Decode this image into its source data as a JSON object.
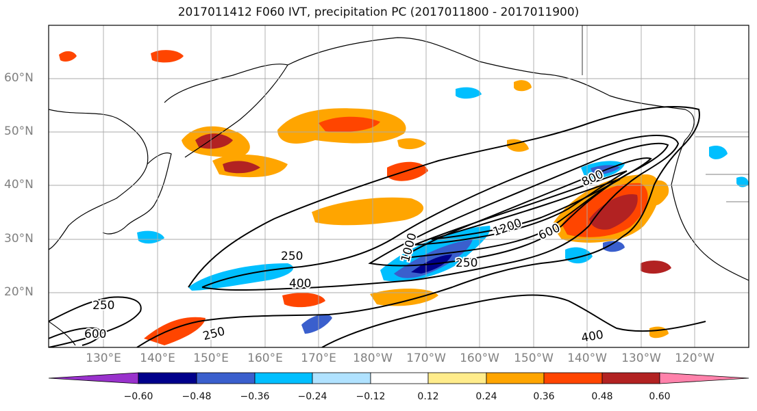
{
  "title": "2017011412 F060 IVT, precipitation PC (2017011800 - 2017011900)",
  "lat_labels": [
    "60°N",
    "50°N",
    "40°N",
    "30°N",
    "20°N"
  ],
  "lon_labels": [
    "130°E",
    "140°E",
    "150°E",
    "160°E",
    "170°E",
    "180°W",
    "170°W",
    "160°W",
    "150°W",
    "140°W",
    "130°W",
    "120°W"
  ],
  "contour_labels": [
    "250",
    "400",
    "250",
    "250",
    "600",
    "1000",
    "1200",
    "600",
    "800",
    "400",
    "250"
  ],
  "colorbar": {
    "tick_labels": [
      "−0.60",
      "−0.48",
      "−0.36",
      "−0.24",
      "−0.12",
      "0.12",
      "0.24",
      "0.36",
      "0.48",
      "0.60"
    ],
    "colors": [
      "#9932cc",
      "#00008b",
      "#3a5fcd",
      "#00bfff",
      "#b0e2ff",
      "#ffffff",
      "#ffec8b",
      "#ffa500",
      "#ff4500",
      "#b22222",
      "#ff82ab"
    ]
  }
}
